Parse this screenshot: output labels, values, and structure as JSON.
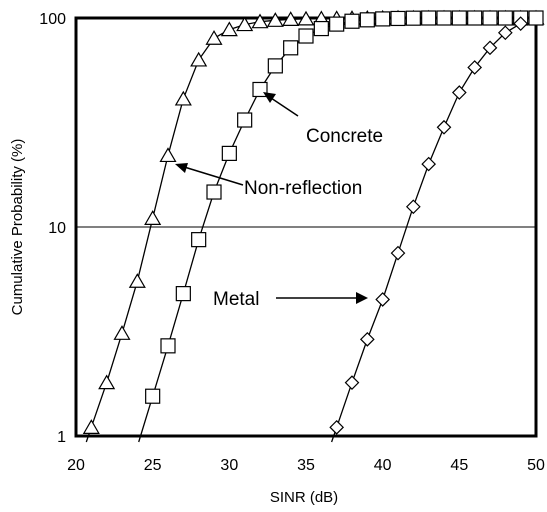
{
  "chart_data": {
    "type": "line",
    "title": "",
    "xlabel": "SINR (dB)",
    "ylabel": "Cumulative Probability (%)",
    "xlim": [
      20,
      50
    ],
    "ylim": [
      1,
      100
    ],
    "yscale": "log",
    "xticks": [
      "20",
      "25",
      "30",
      "35",
      "40",
      "45",
      "50"
    ],
    "yticks": [
      "1",
      "10",
      "100"
    ],
    "grid": "horizontal line at 10",
    "series": [
      {
        "name": "Non-reflection",
        "marker": "triangle",
        "x": [
          21,
          22,
          23,
          24,
          25,
          26,
          27,
          28,
          29,
          30,
          31,
          32,
          33,
          34,
          35,
          36,
          37,
          38,
          39,
          40,
          41,
          42,
          43,
          44,
          45,
          46,
          47,
          48,
          49,
          50
        ],
        "y": [
          1.1,
          1.8,
          3.1,
          5.5,
          11,
          22,
          41,
          63,
          80,
          88,
          93,
          96,
          97.5,
          98.5,
          99,
          99.3,
          99.5,
          99.7,
          99.8,
          99.9,
          100,
          100,
          100,
          100,
          100,
          100,
          100,
          100,
          100,
          100
        ]
      },
      {
        "name": "Concrete",
        "marker": "square",
        "x": [
          25,
          26,
          27,
          28,
          29,
          30,
          31,
          32,
          33,
          34,
          35,
          36,
          37,
          38,
          39,
          40,
          41,
          42,
          43,
          44,
          45,
          46,
          47,
          48,
          49,
          50
        ],
        "y": [
          1.55,
          2.7,
          4.8,
          8.7,
          14.7,
          22.5,
          32.5,
          45.5,
          59,
          72,
          82,
          89,
          93.5,
          96.5,
          98,
          99,
          99.5,
          99.8,
          100,
          100,
          100,
          100,
          100,
          100,
          100,
          100
        ]
      },
      {
        "name": "Metal",
        "marker": "diamond",
        "x": [
          37,
          38,
          39,
          40,
          41,
          42,
          43,
          44,
          45,
          46,
          47,
          48,
          49
        ],
        "y": [
          1.1,
          1.8,
          2.9,
          4.5,
          7.5,
          12.5,
          20,
          30,
          44,
          58,
          72,
          85,
          94
        ]
      }
    ],
    "annotations": [
      "Concrete",
      "Non-reflection",
      "Metal"
    ]
  }
}
